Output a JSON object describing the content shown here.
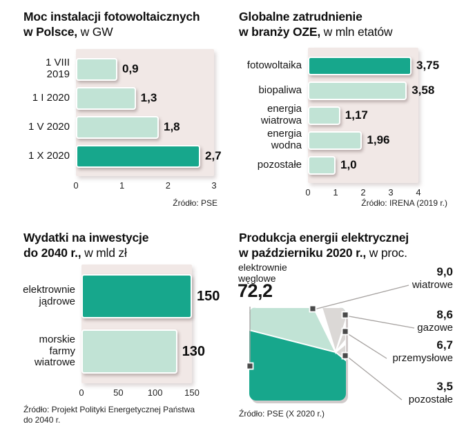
{
  "colors": {
    "dark": "#17a78c",
    "light": "#c1e3d5",
    "panel": "#f1e8e6",
    "gray_slice": "#dbd8d6",
    "marker": "#4a4a4a",
    "line": "#a6a2a0"
  },
  "chart_data": [
    {
      "type": "bar",
      "title_bold_line1": "Moc instalacji fotowoltaicznych",
      "title_bold_line2": "w Polsce,",
      "title_regular": " w GW",
      "xmax": 3,
      "ticks": [
        0,
        1,
        2,
        3
      ],
      "bars": [
        {
          "category": "1 VIII\n2019",
          "value": 0.9,
          "display": "0,9",
          "color": "light"
        },
        {
          "category": "1 I 2020",
          "value": 1.3,
          "display": "1,3",
          "color": "light"
        },
        {
          "category": "1 V 2020",
          "value": 1.8,
          "display": "1,8",
          "color": "light"
        },
        {
          "category": "1 X 2020",
          "value": 2.7,
          "display": "2,7",
          "color": "dark"
        }
      ],
      "source": "Źródło: PSE"
    },
    {
      "type": "bar",
      "title_bold_line1": "Globalne zatrudnienie",
      "title_bold_line2": "w branży OZE,",
      "title_regular": " w mln etatów",
      "xmax": 4,
      "ticks": [
        0,
        1,
        2,
        3,
        4
      ],
      "bars": [
        {
          "category": "fotowoltaika",
          "value": 3.75,
          "display": "3,75",
          "color": "dark"
        },
        {
          "category": "biopaliwa",
          "value": 3.58,
          "display": "3,58",
          "color": "light"
        },
        {
          "category": "energia\nwiatrowa",
          "value": 1.17,
          "display": "1,17",
          "color": "light"
        },
        {
          "category": "energia\nwodna",
          "value": 1.96,
          "display": "1,96",
          "color": "light"
        },
        {
          "category": "pozostałe",
          "value": 1.0,
          "display": "1,0",
          "color": "light"
        }
      ],
      "source": "Źródło: IRENA (2019 r.)"
    },
    {
      "type": "bar",
      "title_bold_line1": "Wydatki na inwestycje",
      "title_bold_line2": "do 2040 r.,",
      "title_regular": " w mld zł",
      "xmax": 150,
      "ticks": [
        0,
        50,
        100,
        150
      ],
      "bars": [
        {
          "category": "elektrownie\njądrowe",
          "value": 150,
          "display": "150",
          "color": "dark"
        },
        {
          "category": "morskie\nfarmy\nwiatrowe",
          "value": 130,
          "display": "130",
          "color": "light"
        }
      ],
      "source": "Źródło: Projekt Polityki Energetycznej Państwa\ndo 2040 r."
    },
    {
      "type": "square-pie",
      "title_bold_line1": "Produkcja energii elektrycznej",
      "title_bold_line2": "w październiku 2020 r.,",
      "title_regular": " w proc.",
      "main_slice": {
        "label": "elektrownie węglowe",
        "value": 72.2,
        "display": "72,2",
        "color": "dark"
      },
      "slices": [
        {
          "label": "wiatrowe",
          "value": 9.0,
          "display": "9,0",
          "color": "light"
        },
        {
          "label": "gazowe",
          "value": 8.6,
          "display": "8,6",
          "color": "gray"
        },
        {
          "label": "przemysłowe",
          "value": 6.7,
          "display": "6,7",
          "color": "gray"
        },
        {
          "label": "pozostałe",
          "value": 3.5,
          "display": "3,5",
          "color": "gray"
        }
      ],
      "source": "Źródło: PSE (X 2020 r.)"
    }
  ]
}
